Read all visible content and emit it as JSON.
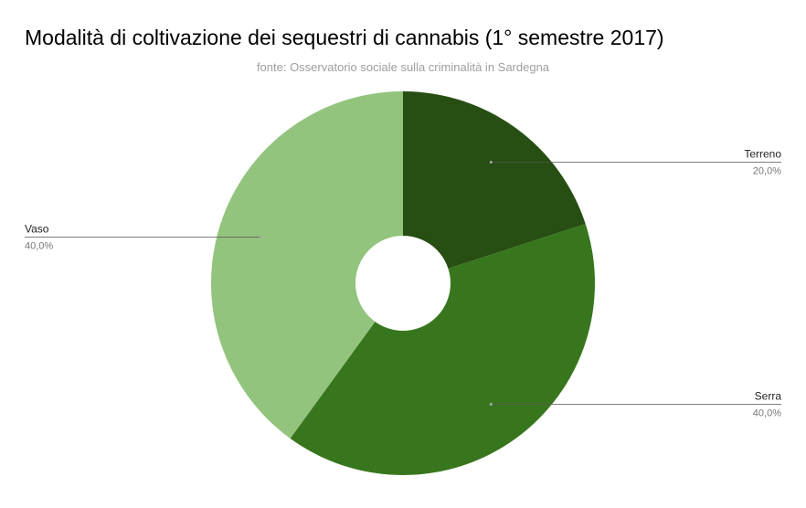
{
  "chart_data": {
    "type": "pie",
    "donut": true,
    "title": "Modalità di coltivazione dei sequestri di cannabis (1° semestre  2017)",
    "subtitle": "fonte: Osservatorio sociale sulla criminalità in Sardegna",
    "slices": [
      {
        "name": "Terreno",
        "value": 20.0,
        "value_label": "20,0%",
        "color": "#274e13",
        "label_side": "right"
      },
      {
        "name": "Serra",
        "value": 40.0,
        "value_label": "40,0%",
        "color": "#38761d",
        "label_side": "right"
      },
      {
        "name": "Vaso",
        "value": 40.0,
        "value_label": "40,0%",
        "color": "#93c47d",
        "label_side": "left"
      }
    ],
    "start_angle_deg": 0,
    "direction": "clockwise",
    "legend": "none"
  }
}
